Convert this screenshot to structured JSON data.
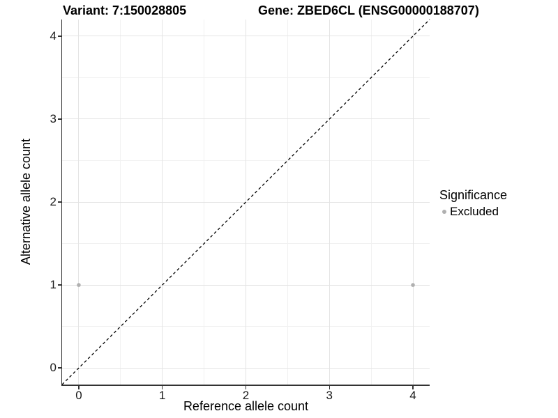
{
  "header": {
    "variant_title": "Variant: 7:150028805",
    "gene_title": "Gene: ZBED6CL (ENSG00000188707)"
  },
  "legend": {
    "title": "Significance",
    "items": [
      {
        "label": "Excluded",
        "marker": "circle",
        "marker_color": "#b0b0b0"
      }
    ]
  },
  "chart_data": {
    "type": "scatter",
    "title_left": "Variant: 7:150028805",
    "title_right": "Gene: ZBED6CL (ENSG00000188707)",
    "xlabel": "Reference allele count",
    "ylabel": "Alternative allele count",
    "xlim": [
      -0.2,
      4.2
    ],
    "ylim": [
      -0.2,
      4.2
    ],
    "x_major_ticks": [
      0,
      1,
      2,
      3,
      4
    ],
    "y_major_ticks": [
      0,
      1,
      2,
      3,
      4
    ],
    "x_minor_ticks": [
      0.5,
      1.5,
      2.5,
      3.5
    ],
    "y_minor_ticks": [
      0.5,
      1.5,
      2.5,
      3.5
    ],
    "grid": "major and minor gridlines on white background",
    "legend_position": "right, vertically centered",
    "reference_line": {
      "kind": "identity y=x",
      "style": "dashed",
      "color": "#000000",
      "from": [
        -0.2,
        -0.2
      ],
      "to": [
        4.2,
        4.2
      ]
    },
    "series": [
      {
        "name": "Excluded",
        "marker": "circle",
        "color": "#b0b0b0",
        "points": [
          [
            0,
            1
          ],
          [
            4,
            1
          ]
        ]
      }
    ],
    "colors": {
      "background": "#ffffff",
      "grid_major": "#e4e4e4",
      "grid_minor": "#f1f1f1",
      "axis_line": "#333333",
      "tick_mark": "#333333",
      "tick_text": "#1a1a1a",
      "title_text": "#000000",
      "excluded_point": "#b0b0b0"
    }
  }
}
